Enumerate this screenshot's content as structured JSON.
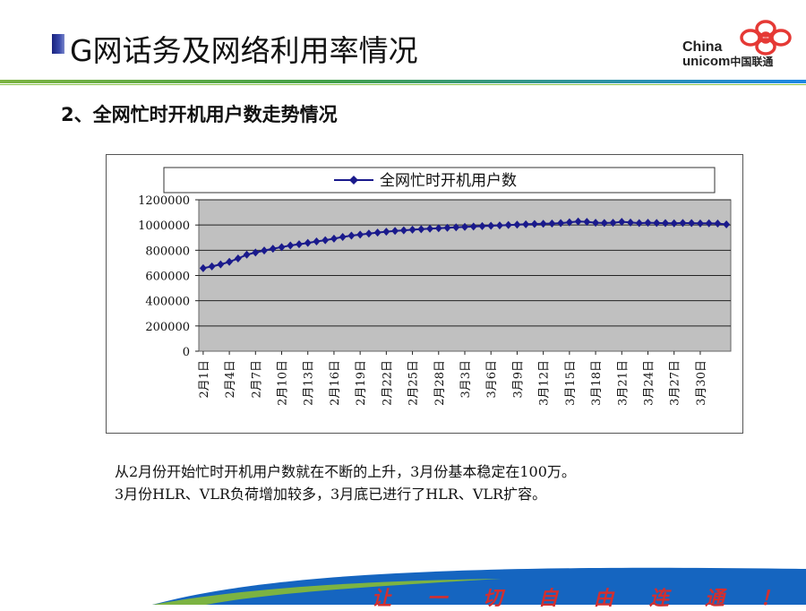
{
  "header": {
    "title": "G网话务及网络利用率情况",
    "logo": {
      "line1": "China",
      "line2": "unicom",
      "cn": "中国联通"
    }
  },
  "subtitle": "2、全网忙时开机用户数走势情况",
  "chart_data": {
    "type": "line",
    "title": "",
    "xlabel": "",
    "ylabel": "",
    "ylim": [
      0,
      1200000
    ],
    "yticks": [
      "0",
      "200000",
      "400000",
      "600000",
      "800000",
      "1000000",
      "1200000"
    ],
    "grid": true,
    "legend_position": "top",
    "plot_bg": "#c0c0c0",
    "series": [
      {
        "name": "全网忙时开机用户数",
        "color": "#1a1a8c",
        "marker": "diamond",
        "values": [
          658000,
          672000,
          688000,
          708000,
          735000,
          765000,
          782000,
          798000,
          812000,
          825000,
          838000,
          848000,
          858000,
          870000,
          880000,
          892000,
          905000,
          916000,
          924000,
          932000,
          940000,
          947000,
          953000,
          958000,
          963000,
          967000,
          971000,
          975000,
          978000,
          982000,
          985000,
          988000,
          991000,
          994000,
          997000,
          1000000,
          1003000,
          1006000,
          1008000,
          1010000,
          1012000,
          1015000,
          1022000,
          1028000,
          1025000,
          1018000,
          1016000,
          1018000,
          1025000,
          1020000,
          1015000,
          1018000,
          1016000,
          1015000,
          1014000,
          1016000,
          1015000,
          1013000,
          1014000,
          1012000,
          1005000
        ]
      }
    ],
    "tick_labels": [
      "2月1日",
      "2月4日",
      "2月7日",
      "2月10日",
      "2月13日",
      "2月16日",
      "2月19日",
      "2月22日",
      "2月25日",
      "2月28日",
      "3月3日",
      "3月6日",
      "3月9日",
      "3月12日",
      "3月15日",
      "3月18日",
      "3月21日",
      "3月24日",
      "3月27日",
      "3月30日"
    ]
  },
  "notes": {
    "line1": "从2月份开始忙时开机用户数就在不断的上升，3月份基本稳定在100万。",
    "line2": "3月份HLR、VLR负荷增加较多，3月底已进行了HLR、VLR扩容。"
  },
  "footer": {
    "slogan": "让一切自由连通！"
  },
  "colors": {
    "accent_green": "#7cb342",
    "accent_blue": "#1e88e5",
    "logo_red": "#e53935"
  }
}
